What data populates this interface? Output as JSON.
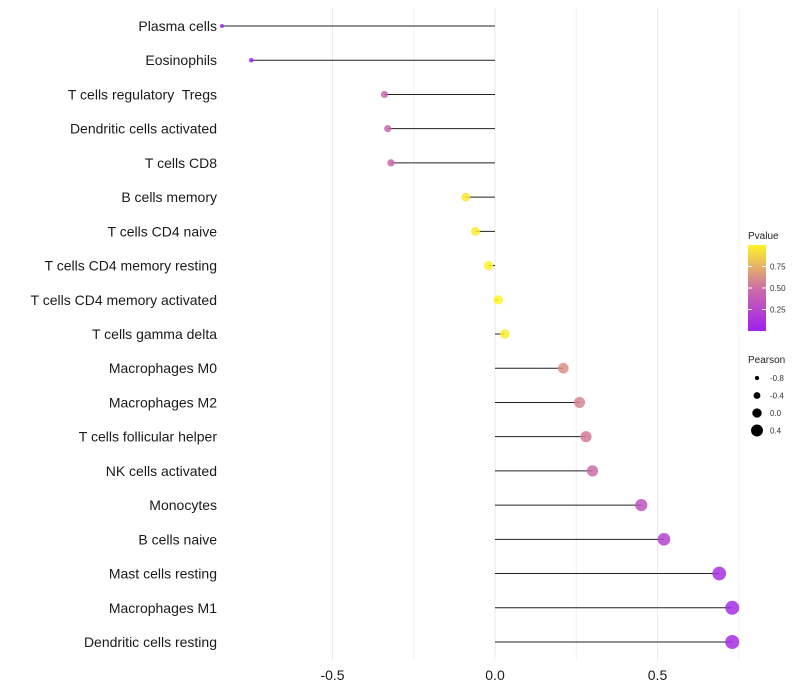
{
  "chart_data": {
    "type": "lollipop",
    "title": "",
    "xlabel": "",
    "ylabel": "",
    "xlim": [
      -0.84,
      0.76
    ],
    "xticks": [
      -0.5,
      0.0,
      0.5
    ],
    "xtick_labels": [
      "-0.5",
      "0.0",
      "0.5"
    ],
    "grid": true,
    "baseline": 0,
    "categories": [
      "Plasma cells",
      "Eosinophils",
      "T cells regulatory  Tregs",
      "Dendritic cells activated",
      "T cells CD8",
      "B cells memory",
      "T cells CD4 naive",
      "T cells CD4 memory resting",
      "T cells CD4 memory activated",
      "T cells gamma delta",
      "Macrophages M0",
      "Macrophages M2",
      "T cells follicular helper",
      "NK cells activated",
      "Monocytes",
      "B cells naive",
      "Mast cells resting",
      "Macrophages M1",
      "Dendritic cells resting"
    ],
    "pearson": [
      -0.84,
      -0.75,
      -0.34,
      -0.33,
      -0.32,
      -0.09,
      -0.06,
      -0.02,
      0.01,
      0.03,
      0.21,
      0.26,
      0.28,
      0.3,
      0.45,
      0.52,
      0.69,
      0.73,
      0.73
    ],
    "pvalue": [
      0.02,
      0.02,
      0.45,
      0.45,
      0.45,
      0.95,
      0.97,
      0.99,
      1.0,
      0.97,
      0.62,
      0.58,
      0.55,
      0.48,
      0.32,
      0.22,
      0.1,
      0.08,
      0.08
    ],
    "legend_color": {
      "title": "Pvalue",
      "ticks": [
        0.25,
        0.5,
        0.75
      ],
      "tick_labels": [
        "0.25",
        "0.50",
        "0.75"
      ],
      "range": [
        0.0,
        1.0
      ],
      "low_color": "#a020f0",
      "mid_color": "#cd6fa5",
      "high_color": "#fff426"
    },
    "legend_size": {
      "title": "Pearson",
      "values": [
        -0.8,
        -0.4,
        0.0,
        0.4
      ],
      "labels": [
        "-0.8",
        "-0.4",
        "0.0",
        "0.4"
      ]
    },
    "legend_position": "right"
  }
}
